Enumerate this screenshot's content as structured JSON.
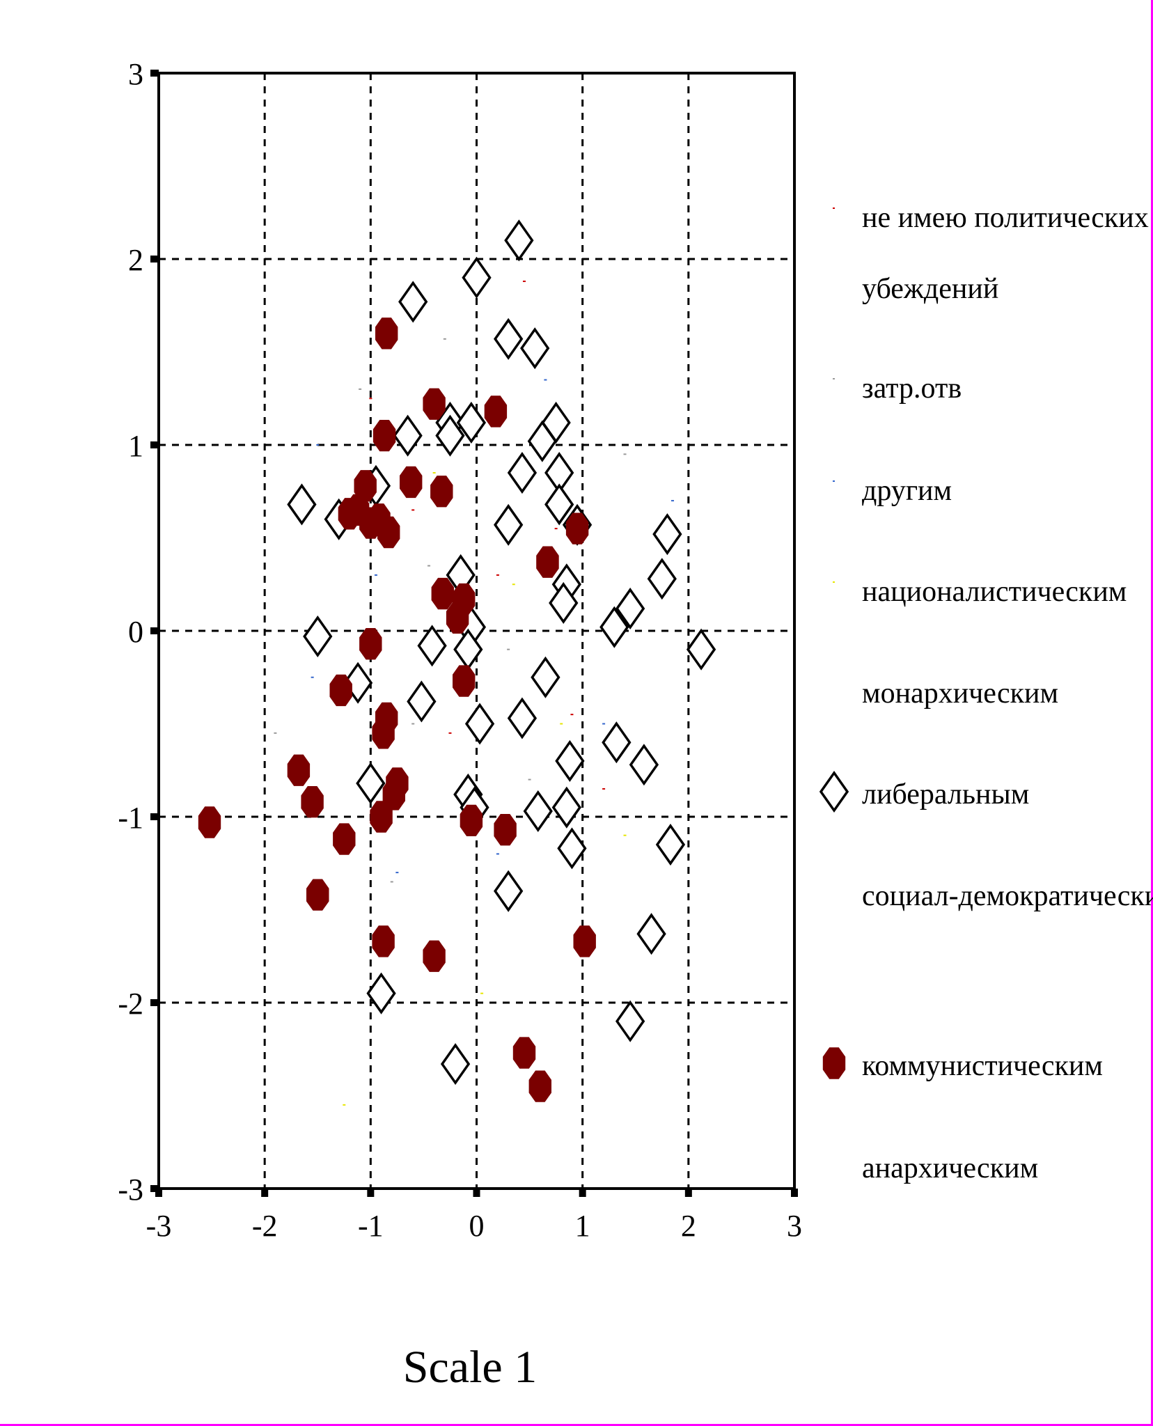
{
  "chart_data": {
    "type": "scatter",
    "xlabel": "Scale 1",
    "ylabel": "",
    "xlim": [
      -3,
      3
    ],
    "ylim": [
      -3,
      3
    ],
    "x_ticks": [
      "-3",
      "-2",
      "-1",
      "0",
      "1",
      "2",
      "3"
    ],
    "y_ticks": [
      "3",
      "2",
      "1",
      "0",
      "-1",
      "-2",
      "-3"
    ],
    "grid": true,
    "legend_position": "right",
    "legend": [
      {
        "label_lines": [
          "не имею политических",
          " убеждений"
        ],
        "marker": "dot",
        "color": "#cc0000"
      },
      {
        "label_lines": [
          "затр.отв"
        ],
        "marker": "dot",
        "color": "#999999"
      },
      {
        "label_lines": [
          "другим"
        ],
        "marker": "dot",
        "color": "#3366cc"
      },
      {
        "label_lines": [
          "националистическим"
        ],
        "marker": "dot",
        "color": "#e6e600"
      },
      {
        "label_lines": [
          "монархическим"
        ],
        "marker": "dot",
        "color": "#ffffff"
      },
      {
        "label_lines": [
          "либеральным"
        ],
        "marker": "diamond",
        "color": "#000000"
      },
      {
        "label_lines": [
          "социал-демократическим"
        ],
        "marker": "dot",
        "color": "#ffffff"
      },
      {
        "label_lines": [
          "коммунистическим"
        ],
        "marker": "octagon",
        "color": "#7a0000"
      },
      {
        "label_lines": [
          "анархическим"
        ],
        "marker": "dot",
        "color": "#ffffff"
      }
    ],
    "series": [
      {
        "name": "либеральным",
        "marker": "diamond",
        "color": "#000000",
        "points": [
          [
            0.4,
            2.1
          ],
          [
            0.0,
            1.9
          ],
          [
            -0.6,
            1.77
          ],
          [
            0.3,
            1.57
          ],
          [
            0.55,
            1.52
          ],
          [
            -0.25,
            1.12
          ],
          [
            -0.05,
            1.12
          ],
          [
            0.75,
            1.12
          ],
          [
            -0.25,
            1.05
          ],
          [
            -0.65,
            1.05
          ],
          [
            0.62,
            1.02
          ],
          [
            0.43,
            0.85
          ],
          [
            0.78,
            0.85
          ],
          [
            -0.95,
            0.78
          ],
          [
            -1.65,
            0.68
          ],
          [
            0.78,
            0.68
          ],
          [
            -1.3,
            0.6
          ],
          [
            0.3,
            0.57
          ],
          [
            1.8,
            0.52
          ],
          [
            0.95,
            0.57
          ],
          [
            -0.15,
            0.3
          ],
          [
            1.75,
            0.28
          ],
          [
            0.85,
            0.25
          ],
          [
            0.82,
            0.15
          ],
          [
            1.45,
            0.12
          ],
          [
            1.3,
            0.02
          ],
          [
            -0.05,
            0.02
          ],
          [
            -1.5,
            -0.03
          ],
          [
            -0.42,
            -0.08
          ],
          [
            -0.08,
            -0.1
          ],
          [
            2.12,
            -0.1
          ],
          [
            -1.12,
            -0.28
          ],
          [
            0.65,
            -0.25
          ],
          [
            -0.52,
            -0.38
          ],
          [
            0.43,
            -0.47
          ],
          [
            0.03,
            -0.5
          ],
          [
            1.32,
            -0.6
          ],
          [
            0.88,
            -0.7
          ],
          [
            1.58,
            -0.72
          ],
          [
            -1.0,
            -0.82
          ],
          [
            -0.08,
            -0.88
          ],
          [
            0.58,
            -0.97
          ],
          [
            0.85,
            -0.95
          ],
          [
            -0.02,
            -0.95
          ],
          [
            0.9,
            -1.17
          ],
          [
            1.83,
            -1.15
          ],
          [
            0.3,
            -1.4
          ],
          [
            1.65,
            -1.63
          ],
          [
            -0.9,
            -1.95
          ],
          [
            1.45,
            -2.1
          ],
          [
            -0.2,
            -2.33
          ]
        ]
      },
      {
        "name": "коммунистическим",
        "marker": "octagon",
        "color": "#7a0000",
        "points": [
          [
            -0.85,
            1.6
          ],
          [
            -0.4,
            1.22
          ],
          [
            0.18,
            1.18
          ],
          [
            -0.87,
            1.05
          ],
          [
            -0.62,
            0.8
          ],
          [
            -1.05,
            0.78
          ],
          [
            -0.33,
            0.75
          ],
          [
            -1.2,
            0.63
          ],
          [
            -1.12,
            0.65
          ],
          [
            -1.0,
            0.58
          ],
          [
            -0.92,
            0.6
          ],
          [
            -0.83,
            0.53
          ],
          [
            0.95,
            0.55
          ],
          [
            0.67,
            0.37
          ],
          [
            -0.32,
            0.2
          ],
          [
            -0.12,
            0.17
          ],
          [
            -0.18,
            0.07
          ],
          [
            -1.0,
            -0.07
          ],
          [
            -0.12,
            -0.27
          ],
          [
            -1.28,
            -0.32
          ],
          [
            -0.85,
            -0.47
          ],
          [
            -0.88,
            -0.55
          ],
          [
            -1.68,
            -0.75
          ],
          [
            -0.75,
            -0.82
          ],
          [
            -0.78,
            -0.88
          ],
          [
            -1.55,
            -0.92
          ],
          [
            -2.52,
            -1.03
          ],
          [
            -0.9,
            -1.0
          ],
          [
            -0.05,
            -1.02
          ],
          [
            0.27,
            -1.07
          ],
          [
            -1.25,
            -1.12
          ],
          [
            -1.5,
            -1.42
          ],
          [
            -0.88,
            -1.67
          ],
          [
            1.02,
            -1.67
          ],
          [
            -0.4,
            -1.75
          ],
          [
            0.45,
            -2.27
          ],
          [
            0.6,
            -2.45
          ]
        ]
      }
    ],
    "minor_points": [
      {
        "color": "#cc0000",
        "points": [
          [
            -1.0,
            1.25
          ],
          [
            0.45,
            1.88
          ],
          [
            -0.8,
            0.6
          ],
          [
            0.75,
            0.55
          ],
          [
            -1.35,
            0.55
          ],
          [
            0.2,
            0.3
          ],
          [
            -0.25,
            -0.55
          ],
          [
            0.9,
            -0.45
          ],
          [
            -0.6,
            0.65
          ],
          [
            1.2,
            -0.85
          ]
        ]
      },
      {
        "color": "#999999",
        "points": [
          [
            -1.1,
            1.3
          ],
          [
            -0.3,
            1.57
          ],
          [
            -1.9,
            -0.55
          ],
          [
            0.3,
            -0.1
          ],
          [
            -0.6,
            -0.5
          ],
          [
            1.4,
            0.95
          ],
          [
            -0.8,
            -1.35
          ],
          [
            0.5,
            -0.8
          ],
          [
            -0.45,
            0.35
          ],
          [
            0.9,
            0.2
          ]
        ]
      },
      {
        "color": "#3366cc",
        "points": [
          [
            -1.5,
            1.0
          ],
          [
            0.65,
            1.35
          ],
          [
            -0.95,
            0.3
          ],
          [
            1.85,
            0.7
          ],
          [
            -1.55,
            -0.25
          ],
          [
            -0.75,
            -1.3
          ],
          [
            0.2,
            -1.2
          ],
          [
            1.2,
            -0.5
          ],
          [
            -0.15,
            -0.9
          ],
          [
            0.4,
            0.8
          ]
        ]
      },
      {
        "color": "#e6e600",
        "points": [
          [
            -1.25,
            -2.55
          ],
          [
            0.05,
            -1.95
          ],
          [
            0.8,
            -0.5
          ],
          [
            1.4,
            -1.1
          ],
          [
            -0.4,
            0.85
          ],
          [
            0.35,
            0.25
          ],
          [
            -0.7,
            -0.8
          ]
        ]
      }
    ]
  }
}
